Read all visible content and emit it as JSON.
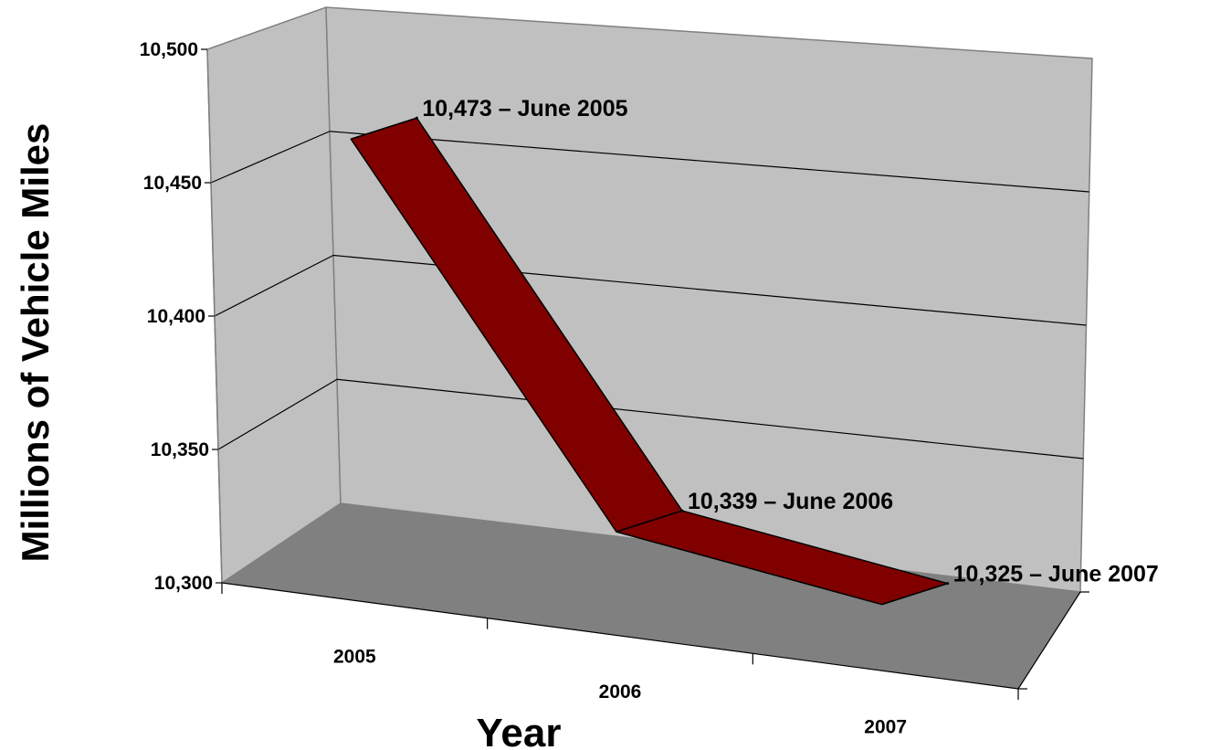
{
  "chart_data": {
    "type": "line",
    "title": "",
    "xlabel": "Year",
    "ylabel": "Millions of Vehicle Miles",
    "categories": [
      "2005",
      "2006",
      "2007"
    ],
    "series": [
      {
        "values": [
          10473,
          10339,
          10325
        ]
      }
    ],
    "ylim": [
      10300,
      10500
    ],
    "yticks": [
      10300,
      10350,
      10400,
      10450,
      10500
    ],
    "ytick_labels": [
      "10,300",
      "10,350",
      "10,400",
      "10,450",
      "10,500"
    ],
    "data_labels": [
      "10,473 – June 2005",
      "10,339 – June 2006",
      "10,325 – June 2007"
    ],
    "grid": true,
    "style": "3d",
    "colors": {
      "line": "#800000",
      "back_wall": "#c0c0c0",
      "side_wall": "#c0c0c0",
      "floor": "#808080"
    }
  }
}
